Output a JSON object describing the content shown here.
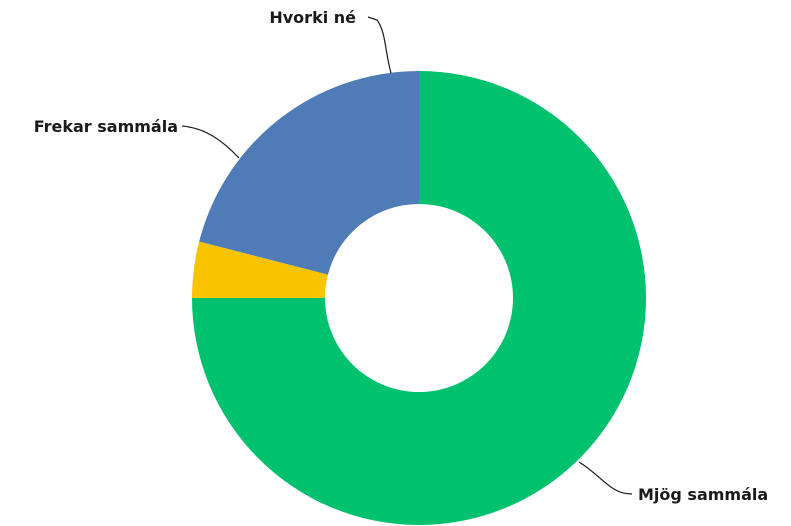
{
  "chart_data": {
    "type": "pie",
    "variant": "donut",
    "title": "",
    "legend": "none",
    "slices": [
      {
        "label": "Mjög sammála",
        "value": 75,
        "color": "#00c16e"
      },
      {
        "label": "Hvorki né",
        "value": 4,
        "color": "#f9c300"
      },
      {
        "label": "Frekar sammála",
        "value": 21,
        "color": "#4f7cb6"
      }
    ]
  }
}
